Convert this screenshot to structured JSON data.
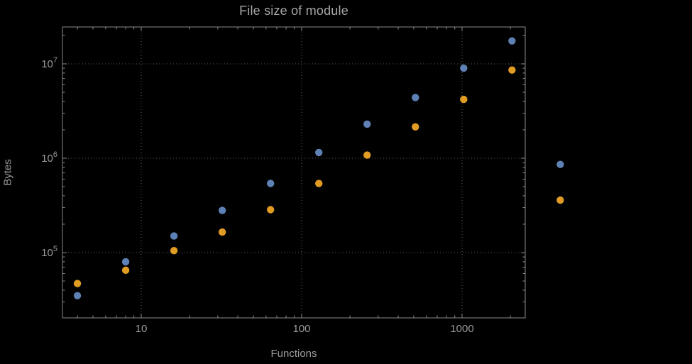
{
  "chart_data": {
    "type": "scatter",
    "title": "File size of module",
    "xlabel": "Functions",
    "ylabel": "Bytes",
    "x_scale": "log",
    "y_scale": "log",
    "x": [
      4,
      8,
      16,
      32,
      64,
      128,
      256,
      512,
      1024,
      2048,
      4096
    ],
    "series": [
      {
        "name": "series-1",
        "color": "#5e81b5",
        "values": [
          35000,
          80000,
          150000,
          280000,
          540000,
          1150000,
          2300000,
          4400000,
          9000000,
          17500000,
          860000
        ]
      },
      {
        "name": "series-2",
        "color": "#e19c24",
        "values": [
          47000,
          65000,
          105000,
          165000,
          285000,
          540000,
          1080000,
          2150000,
          4200000,
          8600000,
          360000
        ]
      }
    ],
    "x_ticks": [
      10,
      100,
      1000
    ],
    "y_tick_exponents": [
      5,
      6,
      7
    ],
    "x_range": [
      3.2,
      2480
    ],
    "y_range": [
      20400,
      24500000
    ],
    "grid": "dotted",
    "legend": "none"
  },
  "style": {
    "background": "#000000",
    "frame_color": "#8a8a8a",
    "grid_color": "#5e5e5e",
    "text_color": "#9b9b9b",
    "title_color": "#a6a6a6"
  }
}
